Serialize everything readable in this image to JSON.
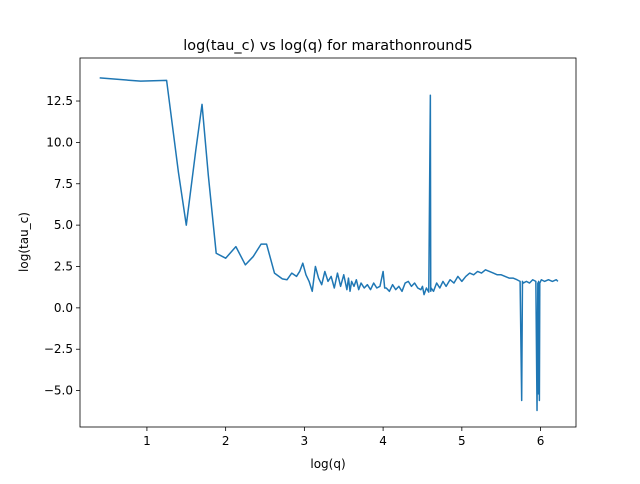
{
  "chart_data": {
    "type": "line",
    "title": "log(tau_c) vs log(q) for marathonround5",
    "xlabel": "log(q)",
    "ylabel": "log(tau_c)",
    "xlim": [
      0.15,
      6.45
    ],
    "ylim": [
      -7.2,
      15.1
    ],
    "xticks": [
      1,
      2,
      3,
      4,
      5,
      6
    ],
    "xtick_labels": [
      "1",
      "2",
      "3",
      "4",
      "5",
      "6"
    ],
    "yticks": [
      -5.0,
      -2.5,
      0.0,
      2.5,
      5.0,
      7.5,
      10.0,
      12.5
    ],
    "ytick_labels": [
      "−5.0",
      "−2.5",
      "0.0",
      "2.5",
      "5.0",
      "7.5",
      "10.0",
      "12.5"
    ],
    "grid": false,
    "legend": "none",
    "series": [
      {
        "color": "#1f77b4",
        "x": [
          0.4,
          0.92,
          1.25,
          1.4,
          1.5,
          1.62,
          1.7,
          1.78,
          1.88,
          2.0,
          2.13,
          2.25,
          2.35,
          2.45,
          2.52,
          2.62,
          2.72,
          2.78,
          2.84,
          2.9,
          2.94,
          2.98,
          3.02,
          3.06,
          3.1,
          3.14,
          3.18,
          3.22,
          3.26,
          3.3,
          3.34,
          3.38,
          3.42,
          3.46,
          3.5,
          3.54,
          3.56,
          3.58,
          3.6,
          3.63,
          3.66,
          3.69,
          3.72,
          3.76,
          3.8,
          3.84,
          3.88,
          3.92,
          3.96,
          4.0,
          4.02,
          4.04,
          4.08,
          4.12,
          4.16,
          4.2,
          4.24,
          4.28,
          4.32,
          4.36,
          4.4,
          4.44,
          4.48,
          4.5,
          4.52,
          4.55,
          4.58,
          4.6,
          4.605,
          4.61,
          4.64,
          4.68,
          4.72,
          4.76,
          4.8,
          4.85,
          4.9,
          4.95,
          5.0,
          5.05,
          5.1,
          5.15,
          5.2,
          5.25,
          5.3,
          5.35,
          5.4,
          5.45,
          5.5,
          5.55,
          5.6,
          5.65,
          5.7,
          5.74,
          5.76,
          5.77,
          5.78,
          5.82,
          5.86,
          5.9,
          5.94,
          5.955,
          5.965,
          5.97,
          5.975,
          5.985,
          5.99,
          6.0,
          6.01,
          6.05,
          6.1,
          6.15,
          6.2,
          6.22
        ],
        "y": [
          13.9,
          13.7,
          13.75,
          8.2,
          5.0,
          9.5,
          12.3,
          8.0,
          3.3,
          3.0,
          3.7,
          2.6,
          3.1,
          3.85,
          3.85,
          2.1,
          1.75,
          1.7,
          2.1,
          1.9,
          2.2,
          2.7,
          2.0,
          1.6,
          1.0,
          2.5,
          1.8,
          1.4,
          2.2,
          1.6,
          1.9,
          1.2,
          2.1,
          1.3,
          2.0,
          1.1,
          1.8,
          1.0,
          1.6,
          1.3,
          1.7,
          1.1,
          1.5,
          1.2,
          1.4,
          1.1,
          1.5,
          1.2,
          1.3,
          2.2,
          1.2,
          1.2,
          1.0,
          1.4,
          1.1,
          1.3,
          1.0,
          1.5,
          1.6,
          1.3,
          1.5,
          1.2,
          1.1,
          1.3,
          0.8,
          1.2,
          0.95,
          12.85,
          1.0,
          1.2,
          1.0,
          1.5,
          1.2,
          1.6,
          1.3,
          1.7,
          1.5,
          1.9,
          1.6,
          1.9,
          2.1,
          2.0,
          2.2,
          2.1,
          2.3,
          2.2,
          2.1,
          2.0,
          2.0,
          1.9,
          1.8,
          1.8,
          1.7,
          1.6,
          -5.6,
          1.6,
          1.5,
          1.6,
          1.5,
          1.7,
          1.6,
          -6.2,
          1.5,
          -5.2,
          1.6,
          -5.6,
          1.5,
          1.6,
          1.7,
          1.6,
          1.7,
          1.6,
          1.7,
          1.6
        ]
      }
    ]
  }
}
